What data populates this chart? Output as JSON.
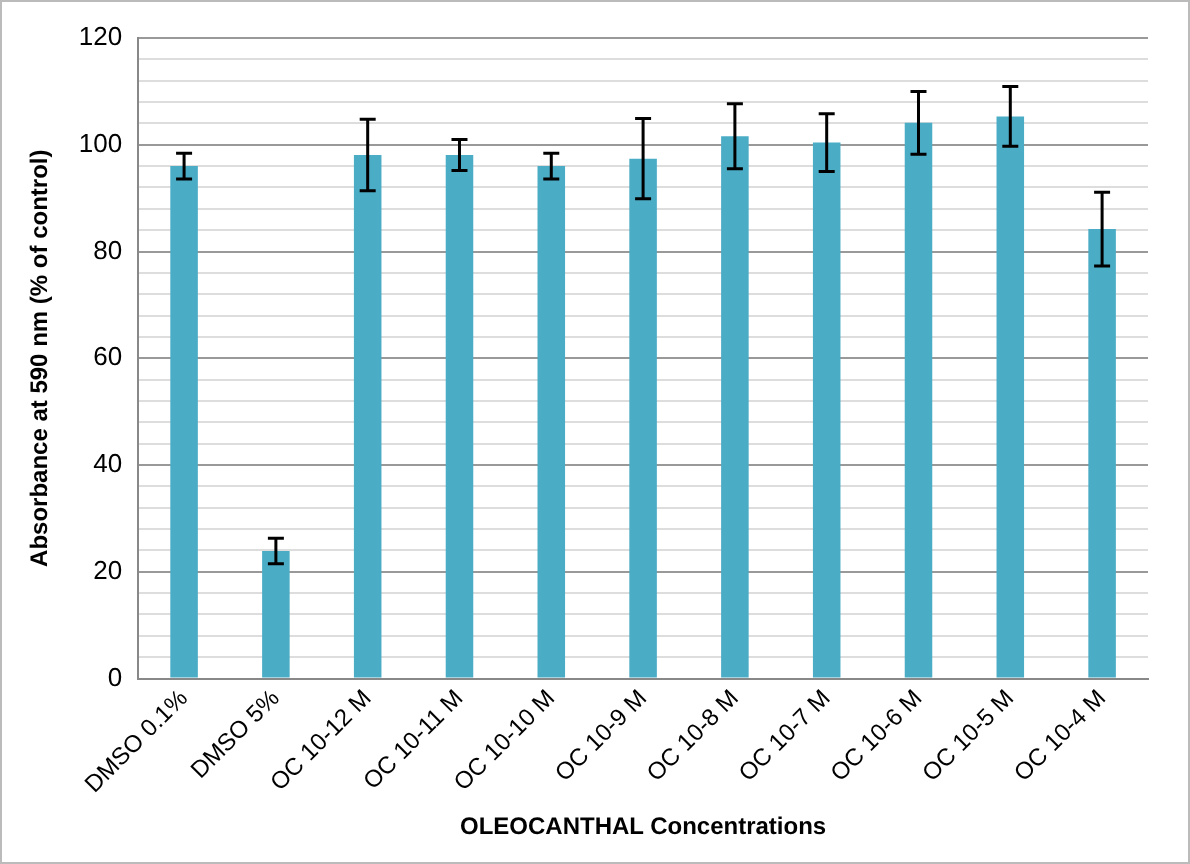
{
  "chart_data": {
    "type": "bar",
    "xlabel": "OLEOCANTHAL Concentrations",
    "ylabel": "Absorbance at 590 nm (% of control)",
    "categories": [
      "DMSO 0.1%",
      "DMSO 5%",
      "OC 10-12 M",
      "OC 10-11 M",
      "OC 10-10 M",
      "OC 10-9 M",
      "OC 10-8 M",
      "OC 10-7 M",
      "OC 10-6 M",
      "OC 10-5 M",
      "OC 10-4 M"
    ],
    "values": [
      96.0,
      23.9,
      98.1,
      98.1,
      96.0,
      97.4,
      101.6,
      100.4,
      104.1,
      105.3,
      84.2
    ],
    "errors": [
      2.4,
      2.4,
      6.7,
      2.9,
      2.4,
      7.5,
      6.1,
      5.4,
      5.9,
      5.6,
      6.9
    ],
    "color": "#4bacc6",
    "ylim": [
      0,
      120
    ],
    "yticks": [
      0,
      {
        "value": 4,
        "label": null
      },
      {
        "value": 8,
        "label": null
      },
      {
        "value": 12,
        "label": null
      },
      {
        "value": 16,
        "label": null
      },
      20,
      {
        "value": 24,
        "label": null
      },
      {
        "value": 28,
        "label": null
      },
      {
        "value": 32,
        "label": null
      },
      {
        "value": 36,
        "label": null
      },
      40,
      {
        "value": 44,
        "label": null
      },
      {
        "value": 48,
        "label": null
      },
      {
        "value": 52,
        "label": null
      },
      {
        "value": 56,
        "label": null
      },
      60,
      {
        "value": 64,
        "label": null
      },
      {
        "value": 68,
        "label": null
      },
      {
        "value": 72,
        "label": null
      },
      {
        "value": 76,
        "label": null
      },
      80,
      {
        "value": 84,
        "label": null
      },
      {
        "value": 88,
        "label": null
      },
      {
        "value": 92,
        "label": null
      },
      {
        "value": 96,
        "label": null
      },
      100,
      {
        "value": 104,
        "label": null
      },
      {
        "value": 108,
        "label": null
      },
      {
        "value": 112,
        "label": null
      },
      {
        "value": 116,
        "label": null
      },
      120
    ],
    "grid": "y",
    "legend": false
  }
}
